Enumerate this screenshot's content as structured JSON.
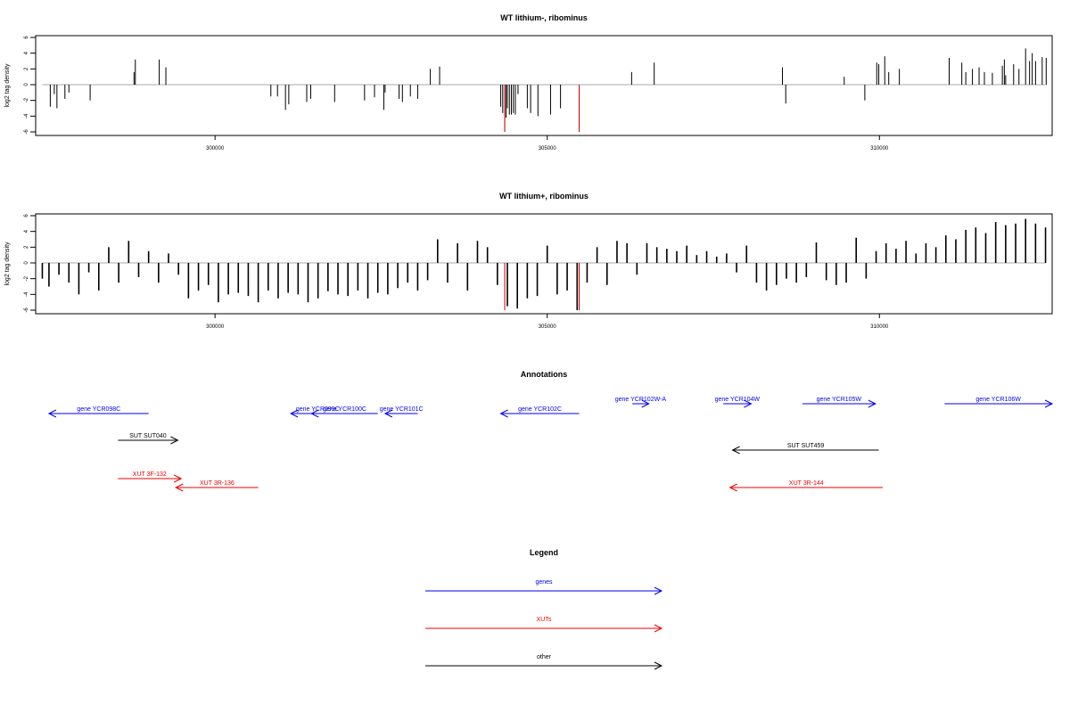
{
  "chart_data": [
    {
      "type": "bar",
      "title": "WT lithium-, ribominus",
      "xlabel": "",
      "ylabel": "log2 tag density",
      "xlim": [
        297300,
        312600
      ],
      "ylim": [
        -6,
        6
      ],
      "x_ticks": [
        300000,
        305000,
        310000
      ],
      "x_tick_labels": [
        "300000",
        "305000",
        "310000"
      ],
      "y_ticks": [
        -6,
        -4,
        -2,
        0,
        2,
        4,
        6
      ],
      "y_tick_labels": [
        "-6",
        "-4",
        "-2",
        "0",
        "2",
        "4",
        "6"
      ],
      "colors": {
        "default": "#000000",
        "highlight": "#cc0000",
        "baseline": "#aaaaaa"
      },
      "series": [
        {
          "x": [
            297520,
            297580,
            297620,
            297740,
            297800,
            298120,
            298780,
            298800,
            299160,
            299260,
            300840,
            300940,
            301060,
            301110,
            301380,
            301440,
            301800,
            302250,
            302400,
            302540,
            302560,
            302770,
            302820,
            302940,
            303050,
            303240,
            303380,
            304300,
            304330,
            304360,
            304380,
            304400,
            304430,
            304460,
            304490,
            304520,
            304560,
            304700,
            304750,
            304860,
            305050,
            305200,
            306270,
            306610,
            308540,
            308590,
            309470,
            309780,
            309960,
            309990,
            310080,
            310140,
            310300,
            311050,
            311240,
            311300,
            311400,
            311500,
            311580,
            311700,
            311850,
            311880,
            311900,
            312020,
            312100,
            312200,
            312260,
            312300,
            312350,
            312450,
            312510
          ],
          "y": [
            -2.8,
            -1.2,
            -3.0,
            -1.8,
            -1.0,
            -2.0,
            1.6,
            3.2,
            3.2,
            2.2,
            -1.5,
            -1.5,
            -3.2,
            -2.5,
            -2.2,
            -1.8,
            -2.2,
            -2.0,
            -1.6,
            -3.2,
            -1.0,
            -1.8,
            -2.2,
            -1.5,
            -1.8,
            2.0,
            2.3,
            -2.8,
            -3.6,
            -6.0,
            -4.2,
            -3.0,
            -3.8,
            -3.8,
            -3.6,
            -3.8,
            -1.2,
            -3.0,
            -3.6,
            -4.0,
            -3.8,
            -3.0,
            1.6,
            2.8,
            2.2,
            -2.4,
            1.0,
            -2.0,
            2.8,
            2.6,
            3.6,
            1.6,
            2.0,
            3.4,
            2.8,
            1.6,
            2.0,
            2.2,
            1.6,
            1.5,
            2.4,
            3.2,
            1.2,
            2.6,
            2.0,
            4.6,
            3.0,
            4.0,
            3.0,
            3.5,
            3.4
          ],
          "highlight_x": [
            304360,
            305480
          ],
          "highlight_y": [
            -6.0,
            -6.0
          ]
        }
      ]
    },
    {
      "type": "bar",
      "title": "WT lithium+, ribominus",
      "xlabel": "",
      "ylabel": "log2 tag density",
      "xlim": [
        297300,
        312600
      ],
      "ylim": [
        -6,
        6
      ],
      "x_ticks": [
        300000,
        305000,
        310000
      ],
      "x_tick_labels": [
        "300000",
        "305000",
        "310000"
      ],
      "y_ticks": [
        -6,
        -4,
        -2,
        0,
        2,
        4,
        6
      ],
      "y_tick_labels": [
        "-6",
        "-4",
        "-2",
        "0",
        "2",
        "4",
        "6"
      ],
      "colors": {
        "default": "#000000",
        "highlight": "#cc0000",
        "baseline": "#aaaaaa"
      },
      "series": [
        {
          "x": [
            297400,
            297500,
            297650,
            297800,
            297950,
            298100,
            298250,
            298400,
            298550,
            298700,
            298850,
            299000,
            299150,
            299300,
            299450,
            299600,
            299750,
            299900,
            300050,
            300200,
            300350,
            300500,
            300650,
            300800,
            300950,
            301100,
            301250,
            301400,
            301550,
            301700,
            301850,
            302000,
            302150,
            302300,
            302450,
            302600,
            302750,
            302900,
            303050,
            303200,
            303350,
            303500,
            303650,
            303800,
            303950,
            304100,
            304250,
            304400,
            304550,
            304700,
            304850,
            305000,
            305150,
            305300,
            305450,
            305600,
            305750,
            305900,
            306050,
            306200,
            306350,
            306500,
            306650,
            306800,
            306950,
            307100,
            307250,
            307400,
            307550,
            307700,
            307850,
            308000,
            308150,
            308300,
            308450,
            308600,
            308750,
            308900,
            309050,
            309200,
            309350,
            309500,
            309650,
            309800,
            309950,
            310100,
            310250,
            310400,
            310550,
            310700,
            310850,
            311000,
            311150,
            311300,
            311450,
            311600,
            311750,
            311900,
            312050,
            312200,
            312350,
            312500
          ],
          "y": [
            -2.0,
            -3.0,
            -1.5,
            -2.5,
            -4.0,
            -1.2,
            -3.5,
            2.0,
            -2.5,
            2.8,
            -1.8,
            1.5,
            -2.5,
            1.2,
            -1.5,
            -4.5,
            -3.5,
            -2.8,
            -5.0,
            -4.0,
            -3.8,
            -4.2,
            -5.0,
            -3.5,
            -4.5,
            -3.8,
            -4.0,
            -5.0,
            -4.5,
            -3.6,
            -4.0,
            -4.2,
            -3.5,
            -4.5,
            -3.8,
            -4.0,
            -3.2,
            -2.5,
            -3.5,
            -2.2,
            3.0,
            -2.5,
            2.5,
            -3.5,
            2.8,
            2.0,
            -2.8,
            -5.5,
            -5.8,
            -4.5,
            -4.2,
            2.2,
            -4.0,
            -3.5,
            -6.0,
            -2.5,
            2.0,
            -2.8,
            2.8,
            2.5,
            -1.5,
            2.5,
            2.0,
            1.8,
            1.5,
            2.2,
            1.0,
            1.5,
            0.8,
            1.2,
            -1.2,
            2.2,
            -2.5,
            -3.5,
            -2.8,
            -2.0,
            -2.5,
            -1.8,
            2.6,
            -2.2,
            -2.8,
            -2.5,
            3.2,
            -2.0,
            1.5,
            2.5,
            1.8,
            2.8,
            1.2,
            2.5,
            2.0,
            3.5,
            3.0,
            4.2,
            4.5,
            3.8,
            5.2,
            4.8,
            5.0,
            5.6,
            5.0,
            4.5
          ],
          "highlight_x": [
            304360,
            305480
          ],
          "highlight_y": [
            -6.0,
            -6.0
          ]
        }
      ]
    }
  ],
  "annotations": {
    "title": "Annotations",
    "features": [
      {
        "label": "gene YCR098C",
        "start": 297500,
        "end": 299000,
        "direction": "left",
        "color": "#0000ee",
        "row": 1
      },
      {
        "label": "gene YCR099C",
        "start": 301140,
        "end": 301950,
        "direction": "left",
        "color": "#0000ee",
        "row": 1
      },
      {
        "label": "gene YCR100C",
        "start": 301450,
        "end": 302450,
        "direction": "left",
        "color": "#0000ee",
        "row": 1
      },
      {
        "label": "gene YCR101C",
        "start": 302560,
        "end": 303050,
        "direction": "left",
        "color": "#0000ee",
        "row": 1
      },
      {
        "label": "gene YCR102C",
        "start": 304300,
        "end": 305480,
        "direction": "left",
        "color": "#0000ee",
        "row": 1
      },
      {
        "label": "gene YCR102W-A",
        "start": 306280,
        "end": 306530,
        "direction": "right",
        "color": "#0000ee",
        "row": 0
      },
      {
        "label": "gene YCR104W",
        "start": 307650,
        "end": 308070,
        "direction": "right",
        "color": "#0000ee",
        "row": 0
      },
      {
        "label": "gene YCR105W",
        "start": 308840,
        "end": 309940,
        "direction": "right",
        "color": "#0000ee",
        "row": 0
      },
      {
        "label": "gene YCR106W",
        "start": 310980,
        "end": 313000,
        "direction": "right",
        "color": "#0000ee",
        "row": 0
      },
      {
        "label": "SUT SUT040",
        "start": 298540,
        "end": 299440,
        "direction": "right",
        "color": "#000000",
        "row": 2
      },
      {
        "label": "SUT SUT459",
        "start": 307790,
        "end": 309990,
        "direction": "left",
        "color": "#000000",
        "row": 3
      },
      {
        "label": "XUT 3F-132",
        "start": 298540,
        "end": 299490,
        "direction": "right",
        "color": "#ee0000",
        "row": 4
      },
      {
        "label": "XUT 3R-136",
        "start": 299410,
        "end": 300650,
        "direction": "left",
        "color": "#ee0000",
        "row": 5
      },
      {
        "label": "XUT 3R-144",
        "start": 307750,
        "end": 310050,
        "direction": "left",
        "color": "#ee0000",
        "row": 5
      }
    ]
  },
  "legend": {
    "title": "Legend",
    "items": [
      {
        "label": "genes",
        "color": "#0000ee"
      },
      {
        "label": "XUTs",
        "color": "#ee0000"
      },
      {
        "label": "other",
        "color": "#000000"
      }
    ]
  }
}
